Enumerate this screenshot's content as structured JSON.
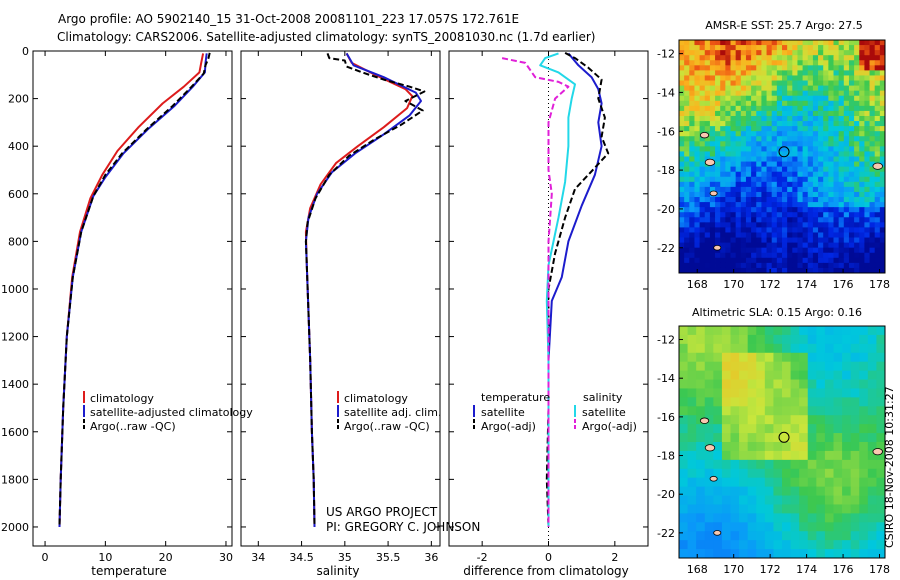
{
  "header": {
    "line1": "Argo profile: AO 5902140_15 31-Oct-2008 20081101_223 17.057S 172.761E",
    "line2": "Climatology: CARS2006. Satellite-adjusted climatology: synTS_20081030.nc (1.7d earlier)"
  },
  "colors": {
    "climatology": "#dd1c1c",
    "satellite": "#1c1ccc",
    "argo": "#000000",
    "salinity_satellite": "#22d8e8",
    "salinity_argo": "#e020d8"
  },
  "chart_data": [
    {
      "type": "line",
      "name": "temperature-profile",
      "xlabel": "temperature",
      "ylabel": "",
      "xlim": [
        -2,
        31
      ],
      "ylim": [
        0,
        2080
      ],
      "y_inverted": true,
      "xticks": [
        0,
        10,
        20,
        30
      ],
      "yticks": [
        0,
        200,
        400,
        600,
        800,
        1000,
        1200,
        1400,
        1600,
        1800,
        2000
      ],
      "legend": [
        "climatology",
        "satellite-adjusted climatology",
        "Argo(..raw -QC)"
      ],
      "series": [
        {
          "name": "climatology",
          "color": "#dd1c1c",
          "dash": "",
          "points": [
            [
              26.2,
              10
            ],
            [
              25.9,
              50
            ],
            [
              25.6,
              90
            ],
            [
              23,
              150
            ],
            [
              19.5,
              220
            ],
            [
              15.5,
              320
            ],
            [
              12,
              420
            ],
            [
              9.5,
              520
            ],
            [
              7.5,
              620
            ],
            [
              5.8,
              760
            ],
            [
              4.5,
              950
            ],
            [
              3.6,
              1200
            ],
            [
              3,
              1500
            ],
            [
              2.6,
              1800
            ],
            [
              2.4,
              2000
            ]
          ]
        },
        {
          "name": "satellite-adjusted climatology",
          "color": "#1c1ccc",
          "dash": "",
          "points": [
            [
              26.8,
              10
            ],
            [
              26.6,
              50
            ],
            [
              26.5,
              90
            ],
            [
              24.5,
              150
            ],
            [
              21.5,
              230
            ],
            [
              17,
              330
            ],
            [
              13,
              430
            ],
            [
              10,
              530
            ],
            [
              8,
              610
            ],
            [
              6,
              760
            ],
            [
              4.6,
              950
            ],
            [
              3.6,
              1200
            ],
            [
              3,
              1500
            ],
            [
              2.6,
              1800
            ],
            [
              2.4,
              2000
            ]
          ]
        },
        {
          "name": "Argo(..raw -QC)",
          "color": "#000000",
          "dash": "6,3",
          "points": [
            [
              27.3,
              8
            ],
            [
              27.1,
              30
            ],
            [
              26.6,
              60
            ],
            [
              26.3,
              95
            ],
            [
              24.3,
              150
            ],
            [
              21.2,
              230
            ],
            [
              16.8,
              330
            ],
            [
              12.8,
              430
            ],
            [
              10,
              520
            ],
            [
              8,
              610
            ],
            [
              6,
              760
            ],
            [
              4.6,
              950
            ],
            [
              3.6,
              1200
            ],
            [
              3,
              1500
            ],
            [
              2.6,
              1800
            ],
            [
              2.4,
              1990
            ]
          ]
        }
      ]
    },
    {
      "type": "line",
      "name": "salinity-profile",
      "xlabel": "salinity",
      "ylabel": "",
      "xlim": [
        33.8,
        36.1
      ],
      "ylim": [
        0,
        2080
      ],
      "y_inverted": true,
      "xticks": [
        34,
        34.5,
        35,
        35.5,
        36
      ],
      "yticks": [
        0,
        200,
        400,
        600,
        800,
        1000,
        1200,
        1400,
        1600,
        1800,
        2000
      ],
      "legend": [
        "climatology",
        "satellite adj. clim.",
        "Argo(..raw -QC)"
      ],
      "annotation": [
        "US ARGO PROJECT",
        "PI: GREGORY C. JOHNSON"
      ],
      "series": [
        {
          "name": "climatology",
          "color": "#dd1c1c",
          "dash": "",
          "points": [
            [
              35.02,
              10
            ],
            [
              35.08,
              50
            ],
            [
              35.35,
              100
            ],
            [
              35.7,
              160
            ],
            [
              35.78,
              190
            ],
            [
              35.72,
              240
            ],
            [
              35.45,
              320
            ],
            [
              35.15,
              400
            ],
            [
              34.9,
              470
            ],
            [
              34.72,
              560
            ],
            [
              34.6,
              660
            ],
            [
              34.55,
              760
            ],
            [
              34.56,
              900
            ],
            [
              34.58,
              1100
            ],
            [
              34.6,
              1300
            ],
            [
              34.62,
              1600
            ],
            [
              34.64,
              1800
            ],
            [
              34.65,
              2000
            ]
          ]
        },
        {
          "name": "satellite adj. clim.",
          "color": "#1c1ccc",
          "dash": "",
          "points": [
            [
              35.02,
              10
            ],
            [
              35.1,
              60
            ],
            [
              35.45,
              110
            ],
            [
              35.82,
              175
            ],
            [
              35.88,
              210
            ],
            [
              35.75,
              270
            ],
            [
              35.45,
              350
            ],
            [
              35.12,
              430
            ],
            [
              34.85,
              510
            ],
            [
              34.68,
              600
            ],
            [
              34.58,
              700
            ],
            [
              34.55,
              800
            ],
            [
              34.56,
              900
            ],
            [
              34.58,
              1100
            ],
            [
              34.6,
              1300
            ],
            [
              34.62,
              1600
            ],
            [
              34.64,
              1800
            ],
            [
              34.65,
              2000
            ]
          ]
        },
        {
          "name": "Argo(..raw -QC)",
          "color": "#000000",
          "dash": "6,3",
          "points": [
            [
              34.8,
              10
            ],
            [
              34.82,
              30
            ],
            [
              35.0,
              40
            ],
            [
              35.02,
              65
            ],
            [
              35.2,
              90
            ],
            [
              35.45,
              120
            ],
            [
              35.75,
              150
            ],
            [
              35.92,
              170
            ],
            [
              35.7,
              210
            ],
            [
              35.9,
              250
            ],
            [
              35.65,
              310
            ],
            [
              35.35,
              370
            ],
            [
              35.05,
              440
            ],
            [
              34.82,
              520
            ],
            [
              34.66,
              620
            ],
            [
              34.57,
              720
            ],
            [
              34.55,
              800
            ],
            [
              34.56,
              900
            ],
            [
              34.58,
              1100
            ],
            [
              34.6,
              1300
            ],
            [
              34.62,
              1600
            ],
            [
              34.64,
              1800
            ],
            [
              34.65,
              1990
            ]
          ]
        }
      ]
    },
    {
      "type": "line",
      "name": "difference-profile",
      "xlabel": "difference from climatology",
      "ylabel": "",
      "xlim": [
        -3,
        3
      ],
      "ylim": [
        0,
        2080
      ],
      "y_inverted": true,
      "xticks": [
        -2,
        0,
        2
      ],
      "yticks": [
        0,
        200,
        400,
        600,
        800,
        1000,
        1200,
        1400,
        1600,
        1800,
        2000
      ],
      "legend_temperature_title": "temperature",
      "legend_salinity_title": "salinity",
      "legend": [
        "satellite",
        "Argo(-adj)",
        "satellite",
        "Argo(-adj)"
      ],
      "series": [
        {
          "name": "temperature satellite",
          "color": "#1c1ccc",
          "dash": "",
          "points": [
            [
              0.6,
              10
            ],
            [
              0.9,
              60
            ],
            [
              1.3,
              110
            ],
            [
              1.5,
              160
            ],
            [
              1.6,
              220
            ],
            [
              1.5,
              300
            ],
            [
              1.6,
              400
            ],
            [
              1.4,
              520
            ],
            [
              1.0,
              650
            ],
            [
              0.6,
              800
            ],
            [
              0.4,
              950
            ],
            [
              0.1,
              1050
            ],
            [
              0.0,
              1300
            ],
            [
              0.0,
              2000
            ]
          ]
        },
        {
          "name": "temperature Argo(-adj)",
          "color": "#000000",
          "dash": "6,3",
          "points": [
            [
              0.5,
              8
            ],
            [
              0.8,
              30
            ],
            [
              1.2,
              70
            ],
            [
              1.6,
              120
            ],
            [
              1.5,
              200
            ],
            [
              1.7,
              280
            ],
            [
              1.6,
              360
            ],
            [
              1.8,
              430
            ],
            [
              1.2,
              520
            ],
            [
              0.8,
              580
            ],
            [
              0.5,
              700
            ],
            [
              0.2,
              850
            ],
            [
              0.0,
              1000
            ],
            [
              0.0,
              1500
            ],
            [
              -0.05,
              1800
            ],
            [
              0.0,
              2000
            ]
          ]
        },
        {
          "name": "salinity satellite",
          "color": "#22d8e8",
          "dash": "",
          "points": [
            [
              0.3,
              10
            ],
            [
              -0.1,
              30
            ],
            [
              -0.25,
              60
            ],
            [
              0.3,
              90
            ],
            [
              0.8,
              140
            ],
            [
              0.7,
              200
            ],
            [
              0.6,
              280
            ],
            [
              0.6,
              400
            ],
            [
              0.5,
              550
            ],
            [
              0.3,
              700
            ],
            [
              0.0,
              900
            ],
            [
              -0.05,
              1050
            ],
            [
              0.0,
              1300
            ],
            [
              0.0,
              2000
            ]
          ]
        },
        {
          "name": "salinity Argo(-adj)",
          "color": "#e020d8",
          "dash": "6,3",
          "points": [
            [
              -1.4,
              30
            ],
            [
              -0.7,
              50
            ],
            [
              -0.5,
              90
            ],
            [
              -0.4,
              110
            ],
            [
              0.3,
              130
            ],
            [
              0.6,
              150
            ],
            [
              0.2,
              200
            ],
            [
              0.0,
              300
            ],
            [
              0.0,
              400
            ],
            [
              0.0,
              500
            ],
            [
              0.1,
              600
            ],
            [
              0.05,
              700
            ],
            [
              0.0,
              800
            ],
            [
              0.0,
              2000
            ]
          ]
        }
      ]
    },
    {
      "type": "heatmap",
      "name": "sst-map",
      "title": "AMSR-E SST: 25.7 Argo: 27.5",
      "xlim": [
        167,
        178.3
      ],
      "ylim": [
        -23.3,
        -11.3
      ],
      "xticks": [
        168,
        170,
        172,
        174,
        176,
        178
      ],
      "yticks": [
        -12,
        -14,
        -16,
        -18,
        -20,
        -22
      ],
      "argo_position": [
        172.761,
        -17.057
      ]
    },
    {
      "type": "heatmap",
      "name": "sla-map",
      "title": "Altimetric SLA: 0.15 Argo: 0.16",
      "xlim": [
        167,
        178.3
      ],
      "ylim": [
        -23.3,
        -11.3
      ],
      "xticks": [
        168,
        170,
        172,
        174,
        176,
        178
      ],
      "yticks": [
        -12,
        -14,
        -16,
        -18,
        -20,
        -22
      ],
      "argo_position": [
        172.761,
        -17.057
      ],
      "side_label": "CSIRO 18-Nov-2008 10:31:27"
    }
  ]
}
